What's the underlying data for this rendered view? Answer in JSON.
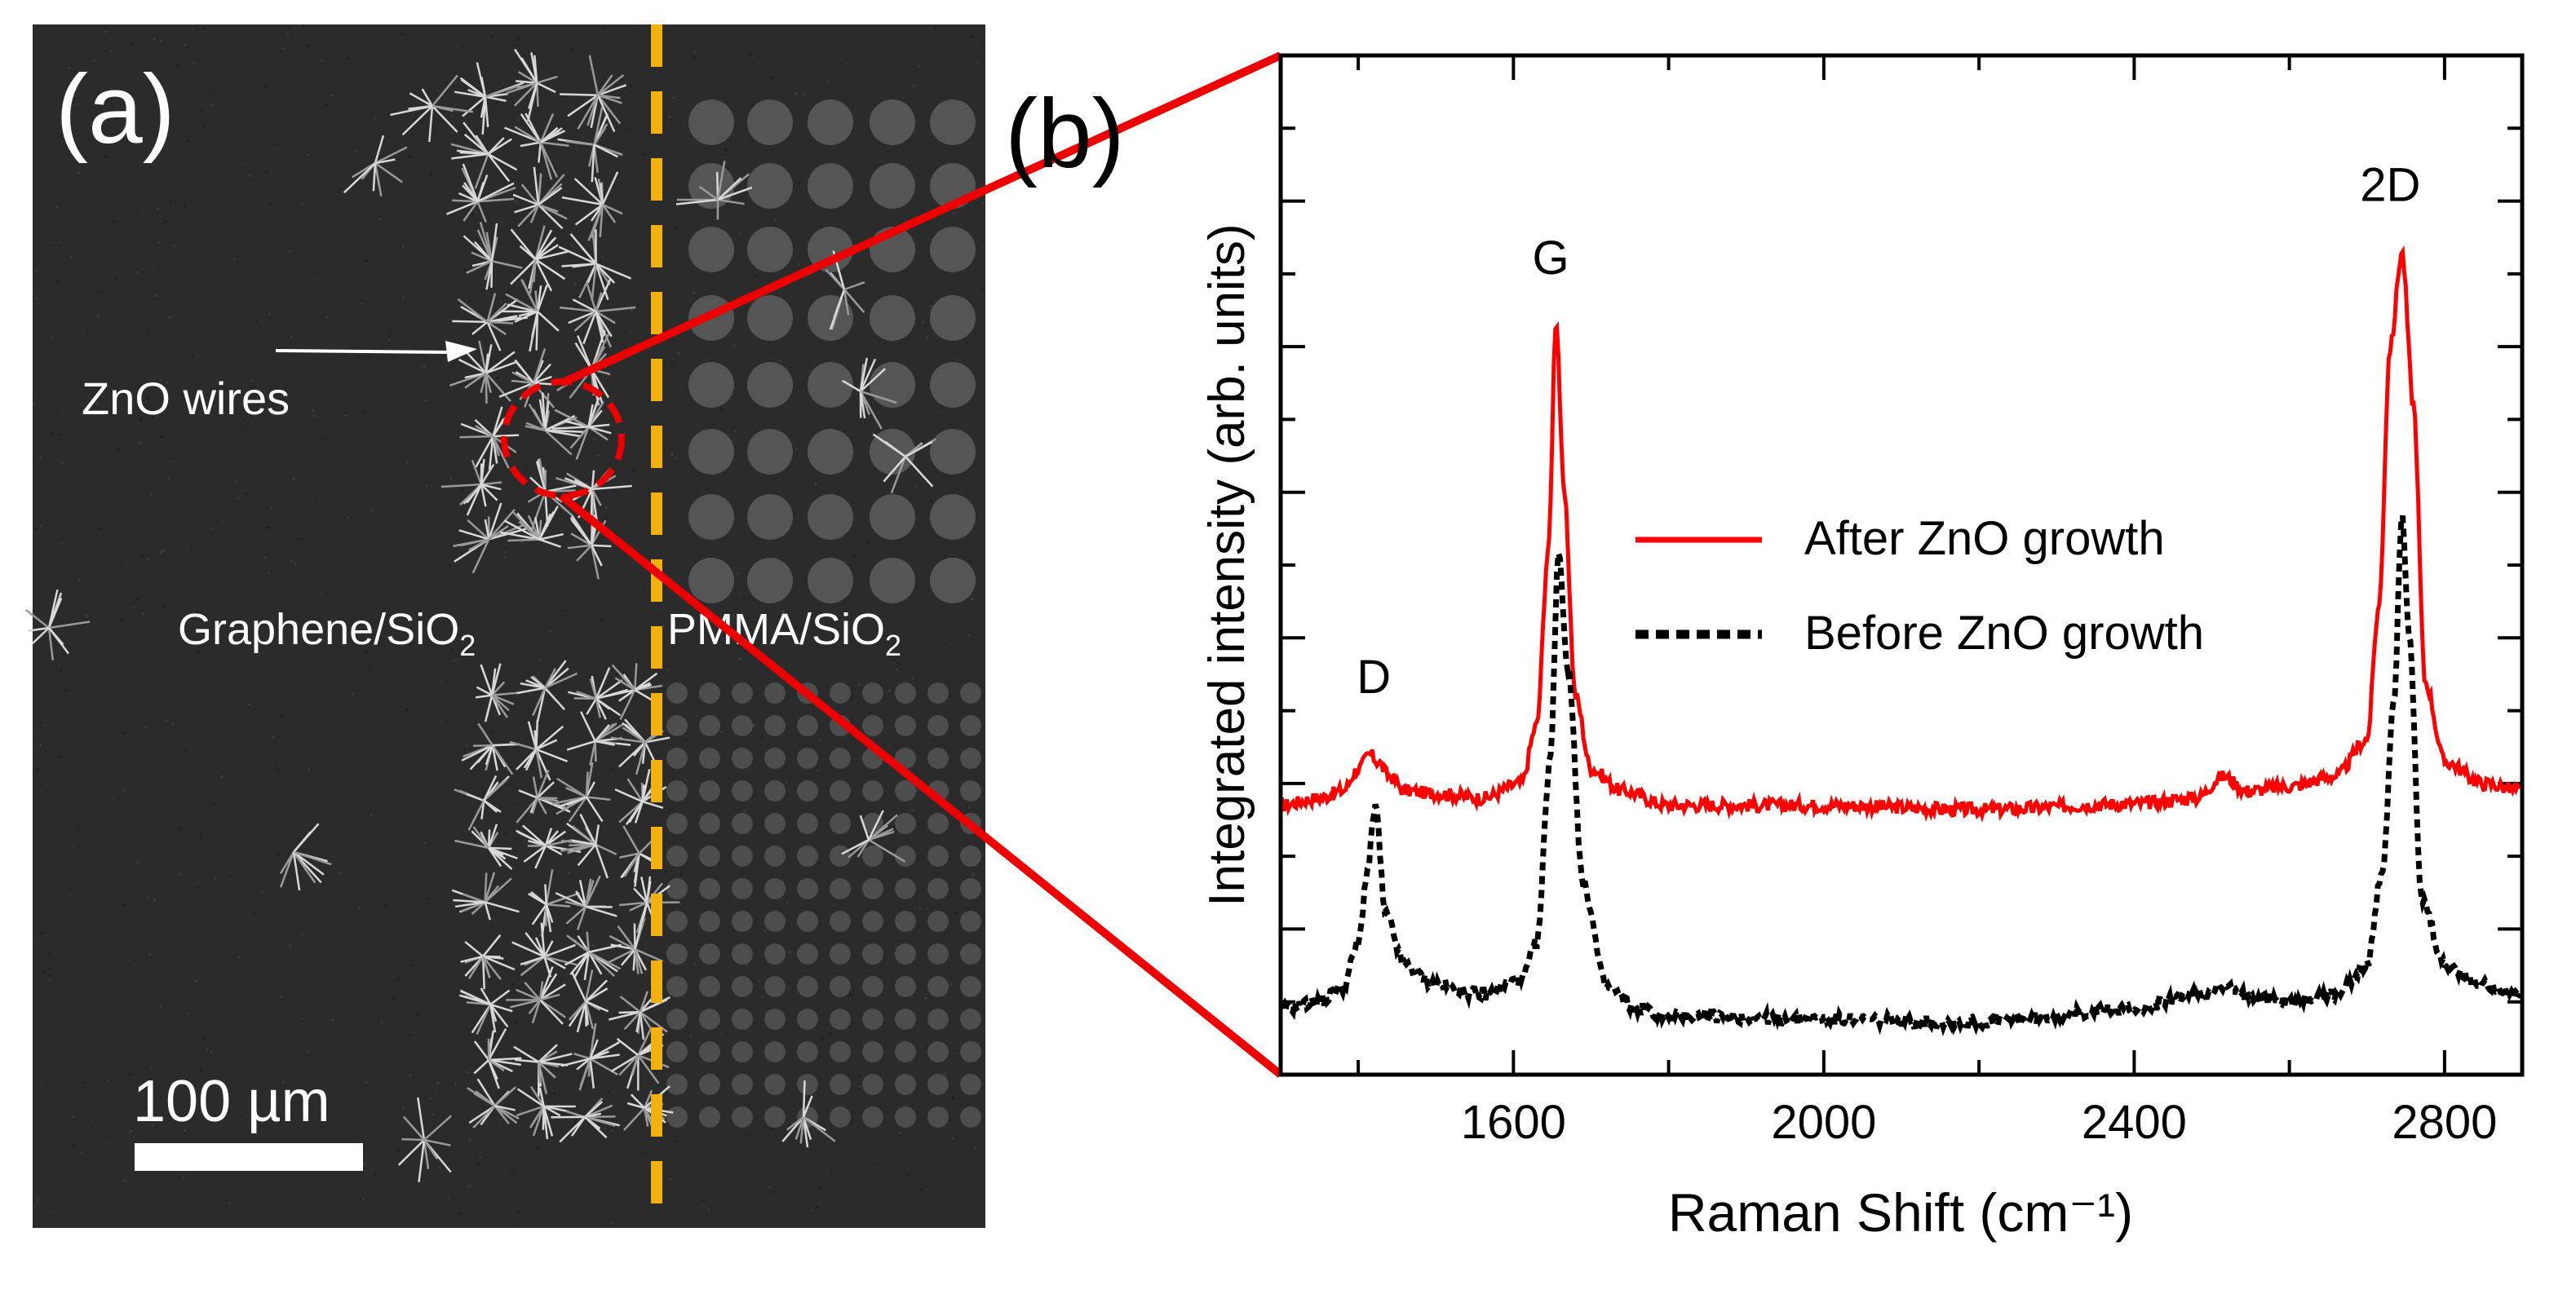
{
  "panel_a": {
    "label": "(a)",
    "wires_label": "ZnO wires",
    "left_region_label": "Graphene/SiO",
    "left_region_sub": "2",
    "right_region_label": "PMMA/SiO",
    "right_region_sub": "2",
    "scale_bar_label": "100 µm"
  },
  "panel_b": {
    "label": "(b)"
  },
  "colors": {
    "after": "#ff0000",
    "before": "#000000",
    "dashed_divider": "#f2b10f",
    "sem_background": "#2b2b2b",
    "zoom_lines": "#ee0000"
  },
  "chart_data": {
    "type": "line",
    "title": "",
    "xlabel": "Raman Shift (cm⁻¹)",
    "ylabel": "Integrated intensity (arb. units)",
    "xlim": [
      1300,
      2900
    ],
    "ylim": [
      0,
      7
    ],
    "x_ticks": [
      1600,
      2000,
      2400,
      2800
    ],
    "x_tick_labels": [
      "1600",
      "2000",
      "2400",
      "2800"
    ],
    "legend_position": "center-right",
    "series": [
      {
        "name": "After ZnO growth",
        "style": "solid",
        "color": "#ff0000",
        "x": [
          1300,
          1350,
          1380,
          1400,
          1415,
          1425,
          1440,
          1460,
          1500,
          1560,
          1610,
          1630,
          1645,
          1655,
          1665,
          1680,
          1700,
          1740,
          1800,
          2000,
          2200,
          2400,
          2480,
          2515,
          2545,
          2600,
          2660,
          2700,
          2715,
          2730,
          2745,
          2760,
          2775,
          2800,
          2850,
          2900
        ],
        "y": [
          1.85,
          1.9,
          1.95,
          2.1,
          2.2,
          2.15,
          2.05,
          1.95,
          1.93,
          1.9,
          2.0,
          2.4,
          3.6,
          5.2,
          4.0,
          2.6,
          2.1,
          1.95,
          1.85,
          1.85,
          1.82,
          1.86,
          1.9,
          2.05,
          1.95,
          1.98,
          2.05,
          2.3,
          3.2,
          5.0,
          5.65,
          4.6,
          2.7,
          2.15,
          2.0,
          1.95
        ]
      },
      {
        "name": "Before ZnO growth",
        "style": "dotted",
        "color": "#000000",
        "x": [
          1300,
          1350,
          1380,
          1400,
          1412,
          1422,
          1435,
          1460,
          1500,
          1560,
          1610,
          1630,
          1648,
          1658,
          1670,
          1690,
          1720,
          1760,
          1800,
          2000,
          2200,
          2400,
          2480,
          2515,
          2545,
          2600,
          2660,
          2700,
          2720,
          2735,
          2745,
          2755,
          2770,
          2800,
          2850,
          2900
        ],
        "y": [
          0.45,
          0.5,
          0.6,
          0.9,
          1.4,
          1.85,
          1.1,
          0.75,
          0.62,
          0.55,
          0.65,
          0.9,
          2.2,
          3.6,
          2.8,
          1.3,
          0.6,
          0.45,
          0.4,
          0.38,
          0.36,
          0.45,
          0.55,
          0.6,
          0.55,
          0.5,
          0.55,
          0.75,
          1.4,
          2.6,
          3.85,
          3.0,
          1.2,
          0.75,
          0.62,
          0.55
        ]
      }
    ],
    "annotations": [
      {
        "text": "D",
        "x": 1420,
        "y": 2.62
      },
      {
        "text": "G",
        "x": 1648,
        "y": 5.5
      },
      {
        "text": "2D",
        "x": 2730,
        "y": 6.0
      }
    ]
  }
}
